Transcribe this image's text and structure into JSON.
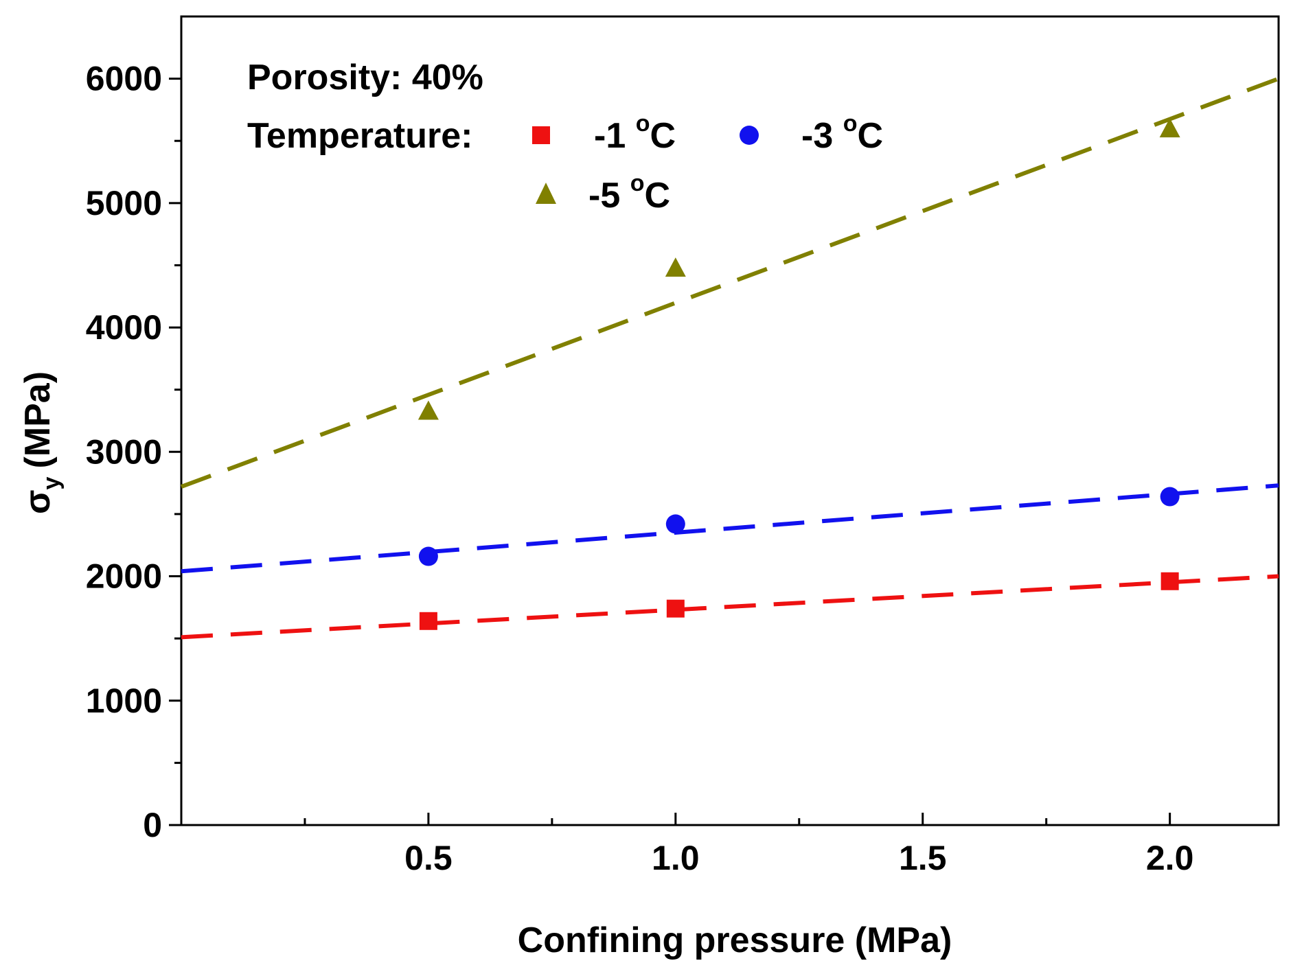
{
  "chart_data": {
    "type": "scatter",
    "title": "",
    "xlabel": "Confining pressure (MPa)",
    "ylabel_symbol": "σ",
    "ylabel_subscript": "y",
    "ylabel_unit": "(MPa)",
    "xlim": [
      0,
      2.22
    ],
    "ylim": [
      0,
      6500
    ],
    "x_ticks": [
      0.5,
      1.0,
      1.5,
      2.0
    ],
    "x_tick_labels": [
      "0.5",
      "1.0",
      "1.5",
      "2.0"
    ],
    "x_minor_ticks": [
      0.25,
      0.75,
      1.25,
      1.75
    ],
    "y_ticks": [
      0,
      1000,
      2000,
      3000,
      4000,
      5000,
      6000
    ],
    "y_tick_labels": [
      "0",
      "1000",
      "2000",
      "3000",
      "4000",
      "5000",
      "6000"
    ],
    "y_minor_ticks": [
      500,
      1500,
      2500,
      3500,
      4500,
      5500
    ],
    "grid": false,
    "annotation": "Porosity: 40%",
    "legend_title": "Temperature:",
    "legend_position": "top-left",
    "series": [
      {
        "name": "-1 °C",
        "label_main": "-1 ",
        "label_sup": "o",
        "label_unit": "C",
        "marker": "square",
        "color": "#ee1111",
        "x": [
          0.5,
          1.0,
          2.0
        ],
        "y": [
          1640,
          1740,
          1960
        ],
        "fit": {
          "x": [
            0,
            2.22
          ],
          "y": [
            1510,
            2000
          ]
        }
      },
      {
        "name": "-3 °C",
        "label_main": "-3 ",
        "label_sup": "o",
        "label_unit": "C",
        "marker": "circle",
        "color": "#1111ee",
        "x": [
          0.5,
          1.0,
          2.0
        ],
        "y": [
          2160,
          2420,
          2640
        ],
        "fit": {
          "x": [
            0,
            2.22
          ],
          "y": [
            2040,
            2730
          ]
        }
      },
      {
        "name": "-5 °C",
        "label_main": "-5 ",
        "label_sup": "o",
        "label_unit": "C",
        "marker": "triangle",
        "color": "#808000",
        "x": [
          0.5,
          1.0,
          2.0
        ],
        "y": [
          3330,
          4480,
          5600
        ],
        "fit": {
          "x": [
            0,
            2.22
          ],
          "y": [
            2720,
            6000
          ]
        }
      }
    ]
  }
}
